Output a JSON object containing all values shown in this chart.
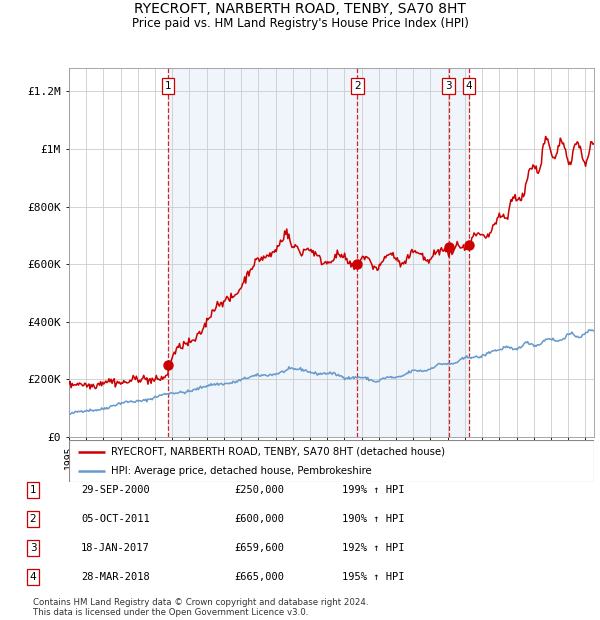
{
  "title": "RYECROFT, NARBERTH ROAD, TENBY, SA70 8HT",
  "subtitle": "Price paid vs. HM Land Registry's House Price Index (HPI)",
  "legend_line1": "RYECROFT, NARBERTH ROAD, TENBY, SA70 8HT (detached house)",
  "legend_line2": "HPI: Average price, detached house, Pembrokeshire",
  "footer_line1": "Contains HM Land Registry data © Crown copyright and database right 2024.",
  "footer_line2": "This data is licensed under the Open Government Licence v3.0.",
  "transactions": [
    {
      "num": 1,
      "date": "29-SEP-2000",
      "price": 250000,
      "pct": "199%",
      "dir": "↑",
      "x_year": 2000.75
    },
    {
      "num": 2,
      "date": "05-OCT-2011",
      "price": 600000,
      "pct": "190%",
      "dir": "↑",
      "x_year": 2011.76
    },
    {
      "num": 3,
      "date": "18-JAN-2017",
      "price": 659600,
      "pct": "192%",
      "dir": "↑",
      "x_year": 2017.05
    },
    {
      "num": 4,
      "date": "28-MAR-2018",
      "price": 665000,
      "pct": "195%",
      "dir": "↑",
      "x_year": 2018.24
    }
  ],
  "xlim": [
    1995.0,
    2025.5
  ],
  "ylim": [
    0,
    1280000
  ],
  "yticks": [
    0,
    200000,
    400000,
    600000,
    800000,
    1000000,
    1200000
  ],
  "ytick_labels": [
    "£0",
    "£200K",
    "£400K",
    "£600K",
    "£800K",
    "£1M",
    "£1.2M"
  ],
  "plot_bg": "#ffffff",
  "hpi_color": "#6699cc",
  "property_color": "#cc0000",
  "dashed_color": "#cc0000",
  "shade_color": "#dce9f5",
  "shade_start": 2000.75,
  "shade_end": 2018.24,
  "transaction_prices": [
    250000,
    600000,
    659600,
    665000
  ]
}
